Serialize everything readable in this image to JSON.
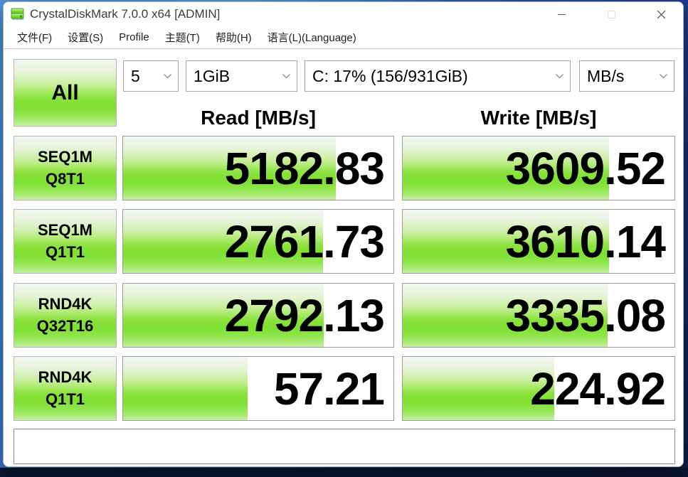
{
  "window": {
    "title": "CrystalDiskMark 7.0.0 x64 [ADMIN]",
    "icons": {
      "app": "disk-drive-icon",
      "controls": [
        "minimize-icon",
        "maximize-icon",
        "close-icon"
      ]
    }
  },
  "menu": {
    "items": [
      {
        "label": "文件(F)"
      },
      {
        "label": "设置(S)"
      },
      {
        "label": "Profile"
      },
      {
        "label": "主题(T)"
      },
      {
        "label": "帮助(H)"
      },
      {
        "label": "语言(L)(Language)"
      }
    ]
  },
  "controls": {
    "all_button": "All",
    "run_count": "5",
    "test_size": "1GiB",
    "target_drive": "C: 17% (156/931GiB)",
    "unit": "MB/s"
  },
  "columns": {
    "read": "Read [MB/s]",
    "write": "Write [MB/s]"
  },
  "results": {
    "rows": [
      {
        "test": "SEQ1M",
        "queue_thread": "Q8T1",
        "read": "5182.83",
        "write": "3609.52"
      },
      {
        "test": "SEQ1M",
        "queue_thread": "Q1T1",
        "read": "2761.73",
        "write": "3610.14"
      },
      {
        "test": "RND4K",
        "queue_thread": "Q32T16",
        "read": "2792.13",
        "write": "3335.08"
      },
      {
        "test": "RND4K",
        "queue_thread": "Q1T1",
        "read": "57.21",
        "write": "224.92"
      }
    ],
    "bar_scale": {
      "log_min": -1,
      "log_max": 5
    }
  },
  "status_bar": {
    "message": ""
  },
  "colors": {
    "bar_green": "#7edf31",
    "bar_green_top": "#f3f8f0",
    "cell_border": "#9a9a9a",
    "desktop_blue": "#2a5fc0",
    "desktop_navy": "#0a1734"
  }
}
